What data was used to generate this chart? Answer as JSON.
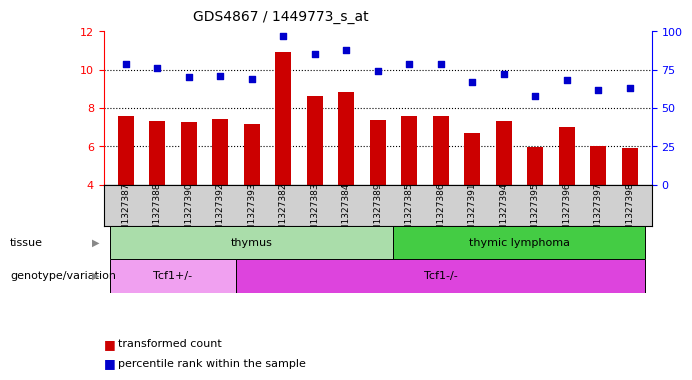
{
  "title": "GDS4867 / 1449773_s_at",
  "samples": [
    "GSM1327387",
    "GSM1327388",
    "GSM1327390",
    "GSM1327392",
    "GSM1327393",
    "GSM1327382",
    "GSM1327383",
    "GSM1327384",
    "GSM1327389",
    "GSM1327385",
    "GSM1327386",
    "GSM1327391",
    "GSM1327394",
    "GSM1327395",
    "GSM1327396",
    "GSM1327397",
    "GSM1327398"
  ],
  "bar_values": [
    7.6,
    7.3,
    7.25,
    7.45,
    7.15,
    10.9,
    8.65,
    8.85,
    7.4,
    7.6,
    7.6,
    6.7,
    7.35,
    5.95,
    7.0,
    6.0,
    5.9
  ],
  "dot_values": [
    79,
    76,
    70,
    71,
    69,
    97,
    85,
    88,
    74,
    79,
    79,
    67,
    72,
    58,
    68,
    62,
    63
  ],
  "ylim_left": [
    4,
    12
  ],
  "ylim_right": [
    0,
    100
  ],
  "yticks_left": [
    4,
    6,
    8,
    10,
    12
  ],
  "yticks_right": [
    0,
    25,
    50,
    75,
    100
  ],
  "bar_color": "#cc0000",
  "dot_color": "#0000cc",
  "tissue_groups": [
    {
      "label": "thymus",
      "start": 0,
      "end": 9,
      "color": "#aaddaa"
    },
    {
      "label": "thymic lymphoma",
      "start": 9,
      "end": 17,
      "color": "#44cc44"
    }
  ],
  "genotype_groups": [
    {
      "label": "Tcf1+/-",
      "start": 0,
      "end": 4,
      "color": "#f0a0f0"
    },
    {
      "label": "Tcf1-/-",
      "start": 4,
      "end": 17,
      "color": "#dd44dd"
    }
  ],
  "tissue_label": "tissue",
  "genotype_label": "genotype/variation",
  "legend_bar_label": "transformed count",
  "legend_dot_label": "percentile rank within the sample",
  "xtick_bg_color": "#d0d0d0",
  "plot_bg_color": "#ffffff",
  "dotted_lines": [
    6,
    8,
    10
  ]
}
